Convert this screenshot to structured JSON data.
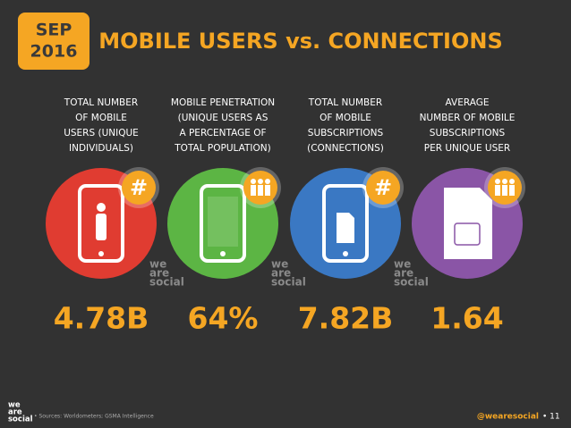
{
  "header": {
    "month": "SEP",
    "year": "2016",
    "title": "MOBILE USERS vs. CONNECTIONS"
  },
  "stats": [
    {
      "label": [
        "TOTAL NUMBER",
        "OF MOBILE",
        "USERS (UNIQUE",
        "INDIVIDUALS)"
      ],
      "value": "4.78B",
      "badge": "#",
      "color": "#e03c31",
      "icon": "person"
    },
    {
      "label": [
        "MOBILE PENETRATION",
        "(UNIQUE USERS AS",
        "A PERCENTAGE OF",
        "TOTAL POPULATION)"
      ],
      "value": "64%",
      "color": "#5cb544",
      "icon": "phone"
    },
    {
      "label": [
        "TOTAL NUMBER",
        "OF MOBILE",
        "SUBSCRIPTIONS",
        "(CONNECTIONS)"
      ],
      "value": "7.82B",
      "badge": "#",
      "color": "#3a78c3",
      "icon": "sim-phone"
    },
    {
      "label": [
        "AVERAGE",
        "NUMBER OF MOBILE",
        "SUBSCRIPTIONS",
        "PER UNIQUE USER"
      ],
      "value": "1.64",
      "color": "#8a55a6",
      "icon": "sim"
    }
  ],
  "watermark": [
    "we",
    "are",
    "social"
  ],
  "footer": {
    "logo": [
      "we",
      "are",
      "social"
    ],
    "source": "• Sources: Worldometers; GSMA Intelligence",
    "handle": "@wearesocial",
    "page": "• 11"
  }
}
